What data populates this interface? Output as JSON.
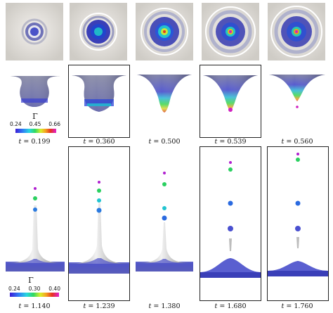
{
  "row1": {
    "times": [
      "0.199",
      "0.360",
      "0.500",
      "0.539",
      "0.560"
    ],
    "colorbar": {
      "symbol": "Γ",
      "ticks": [
        "0.24",
        "0.45",
        "0.66"
      ]
    }
  },
  "row2": {
    "times": [
      "1.140",
      "1.239",
      "1.380",
      "1.680",
      "1.760"
    ],
    "colorbar": {
      "symbol": "Γ",
      "ticks": [
        "0.24",
        "0.30",
        "0.40"
      ]
    }
  },
  "time_prefix": "t",
  "time_equals": " = ",
  "colors": {
    "surface_top": "#5a5d88",
    "surface_blue": "#3a3fd0",
    "grey_surface": "#c8c8c8",
    "frame": "#222222"
  }
}
